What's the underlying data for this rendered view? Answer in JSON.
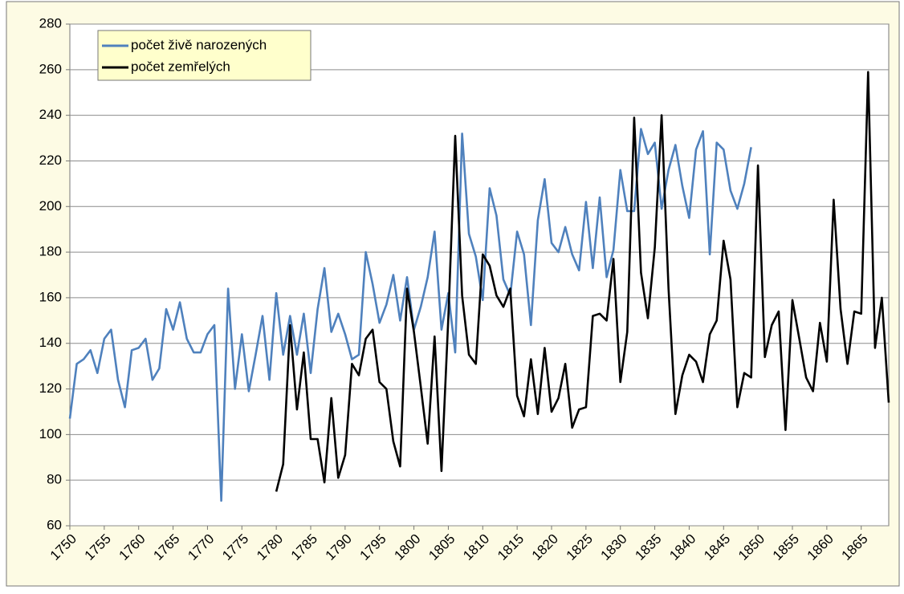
{
  "chart_data": {
    "type": "line",
    "x": [
      1750,
      1751,
      1752,
      1753,
      1754,
      1755,
      1756,
      1757,
      1758,
      1759,
      1760,
      1761,
      1762,
      1763,
      1764,
      1765,
      1766,
      1767,
      1768,
      1769,
      1770,
      1771,
      1772,
      1773,
      1774,
      1775,
      1776,
      1777,
      1778,
      1779,
      1780,
      1781,
      1782,
      1783,
      1784,
      1785,
      1786,
      1787,
      1788,
      1789,
      1790,
      1791,
      1792,
      1793,
      1794,
      1795,
      1796,
      1797,
      1798,
      1799,
      1800,
      1801,
      1802,
      1803,
      1804,
      1805,
      1806,
      1807,
      1808,
      1809,
      1810,
      1811,
      1812,
      1813,
      1814,
      1815,
      1816,
      1817,
      1818,
      1819,
      1820,
      1821,
      1822,
      1823,
      1824,
      1825,
      1826,
      1827,
      1828,
      1829,
      1830,
      1831,
      1832,
      1833,
      1834,
      1835,
      1836,
      1837,
      1838,
      1839,
      1840,
      1841,
      1842,
      1843,
      1844,
      1845,
      1846,
      1847,
      1848,
      1849,
      1850,
      1851,
      1852,
      1853,
      1854,
      1855,
      1856,
      1857,
      1858,
      1859,
      1860,
      1861,
      1862,
      1863,
      1864,
      1865,
      1866,
      1867,
      1868,
      1869
    ],
    "series": [
      {
        "name": "počet živě narozených",
        "color": "#4f81bd",
        "values": [
          107,
          131,
          133,
          137,
          127,
          142,
          146,
          124,
          112,
          137,
          138,
          142,
          124,
          129,
          155,
          146,
          158,
          142,
          136,
          136,
          144,
          148,
          71,
          164,
          120,
          144,
          119,
          135,
          152,
          124,
          162,
          135,
          152,
          135,
          153,
          127,
          155,
          173,
          145,
          153,
          144,
          133,
          135,
          180,
          166,
          149,
          157,
          170,
          150,
          169,
          146,
          156,
          169,
          189,
          146,
          162,
          136,
          232,
          188,
          178,
          159,
          208,
          196,
          168,
          161,
          189,
          179,
          148,
          194,
          212,
          184,
          180,
          191,
          179,
          172,
          202,
          173,
          204,
          169,
          181,
          216,
          198,
          198,
          234,
          223,
          228,
          199,
          216,
          227,
          209,
          195,
          225,
          233,
          179,
          228,
          225,
          207,
          199,
          210,
          226,
          null,
          null,
          null,
          null,
          null,
          null,
          null,
          null,
          null,
          null,
          null,
          null,
          null,
          null,
          null,
          null,
          null,
          null,
          null,
          null
        ]
      },
      {
        "name": "počet zemřelých",
        "color": "#000000",
        "values": [
          null,
          null,
          null,
          null,
          null,
          null,
          null,
          null,
          null,
          null,
          null,
          null,
          null,
          null,
          null,
          null,
          null,
          null,
          null,
          null,
          null,
          null,
          null,
          null,
          null,
          null,
          null,
          null,
          null,
          null,
          75,
          87,
          148,
          111,
          136,
          98,
          98,
          79,
          116,
          81,
          91,
          131,
          126,
          142,
          146,
          123,
          120,
          97,
          86,
          164,
          145,
          121,
          96,
          143,
          84,
          151,
          231,
          161,
          135,
          131,
          179,
          174,
          161,
          156,
          164,
          117,
          108,
          133,
          109,
          138,
          110,
          116,
          131,
          103,
          111,
          112,
          152,
          153,
          150,
          177,
          123,
          145,
          239,
          171,
          151,
          182,
          240,
          164,
          109,
          126,
          135,
          132,
          123,
          144,
          150,
          185,
          168,
          112,
          127,
          125,
          218,
          134,
          148,
          154,
          102,
          159,
          142,
          125,
          119,
          149,
          132,
          203,
          155,
          131,
          154,
          153,
          259,
          138,
          160,
          114
        ]
      }
    ],
    "xlim": [
      1750,
      1869
    ],
    "xticks": [
      1750,
      1755,
      1760,
      1765,
      1770,
      1775,
      1780,
      1785,
      1790,
      1795,
      1800,
      1805,
      1810,
      1815,
      1820,
      1825,
      1830,
      1835,
      1840,
      1845,
      1850,
      1855,
      1860,
      1865
    ],
    "ylim": [
      60,
      280
    ],
    "yticks": [
      60,
      80,
      100,
      120,
      140,
      160,
      180,
      200,
      220,
      240,
      260,
      280
    ],
    "grid": true,
    "legend": "top-left"
  }
}
